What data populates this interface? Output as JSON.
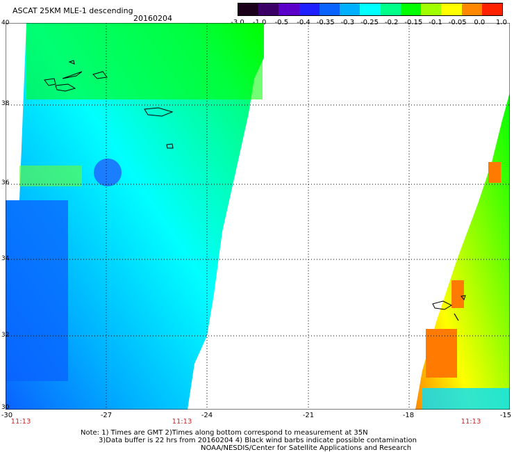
{
  "title": "ASCAT 25KM MLE-1 descending",
  "date": "20160204",
  "colorbar": {
    "labels": [
      "-3.0",
      "-1.0",
      "-0.5",
      "-0.4",
      "-0.35",
      "-0.3",
      "-0.25",
      "-0.2",
      "-0.15",
      "-0.1",
      "-0.05",
      "0.0",
      "1.0"
    ],
    "colors": [
      "#1a0018",
      "#3a0066",
      "#5a00c8",
      "#2020ff",
      "#0a62ff",
      "#00b0ff",
      "#00ffff",
      "#00ff88",
      "#00ff00",
      "#a0ff00",
      "#ffff00",
      "#ff8800",
      "#ff2200"
    ]
  },
  "axes": {
    "y_ticks": [
      "40",
      "38",
      "36",
      "34",
      "32",
      "30"
    ],
    "x_ticks": [
      "-30",
      "-27",
      "-24",
      "-21",
      "-18",
      "-15"
    ]
  },
  "pass_times": [
    "11:13",
    "11:13",
    "11:13"
  ],
  "notes": {
    "line1": "Note: 1) Times are GMT 2)Times along bottom correspond to measurement at 35N",
    "line2": "3)Data buffer is 22 hrs from 20160204 4) Black wind barbs indicate possible contamination",
    "line3": "NOAA/NESDIS/Center for Satellite Applications and Research"
  }
}
